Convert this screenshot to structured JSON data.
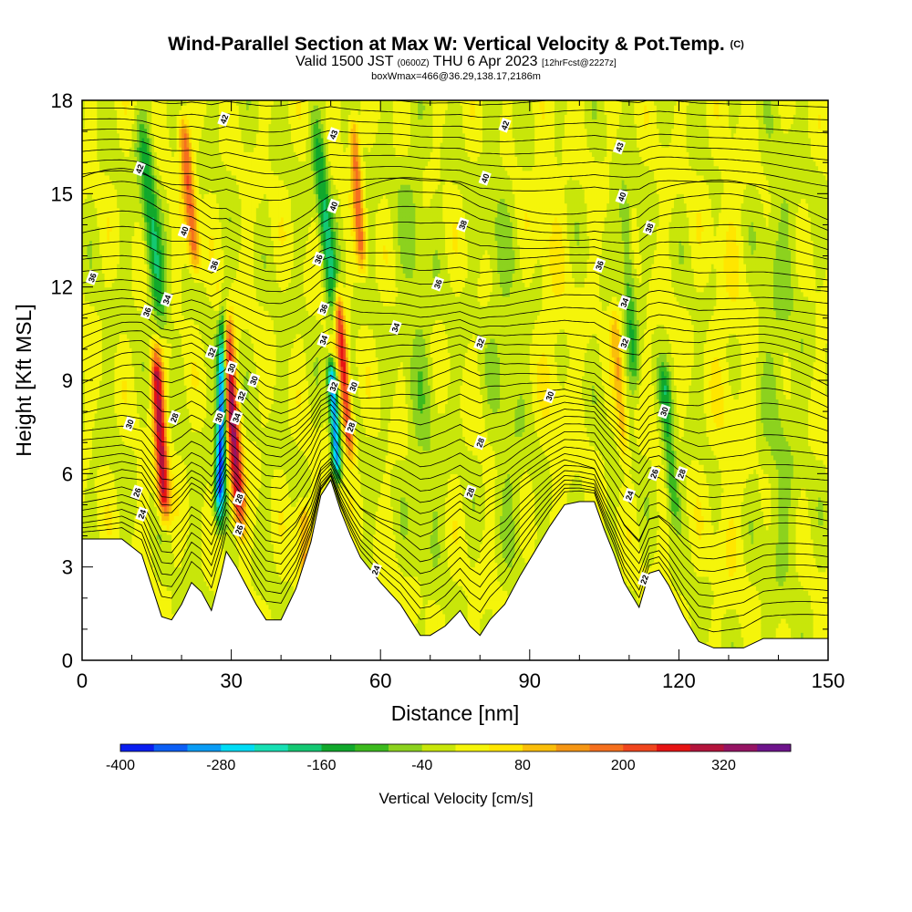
{
  "header": {
    "title_main": "Wind-Parallel Section at Max W: Vertical Velocity & Pot.Temp.",
    "title_mark": "(C)",
    "valid_prefix": "Valid 1500 JST",
    "valid_utc": "(0600Z)",
    "valid_date": "THU 6 Apr 2023",
    "valid_fcst": "[12hrFcst@2227z]",
    "box_info": "boxWmax=466@36.29,138.17,2186m"
  },
  "chart_data": {
    "type": "heatmap",
    "xlabel": "Distance [nm]",
    "ylabel": "Height [Kft MSL]",
    "xlim": [
      0,
      150
    ],
    "ylim": [
      0,
      18
    ],
    "x_ticks": [
      "0",
      "30",
      "60",
      "90",
      "120",
      "150"
    ],
    "y_ticks": [
      "0",
      "3",
      "6",
      "9",
      "12",
      "15",
      "18"
    ],
    "colorbar": {
      "title": "Vertical Velocity [cm/s]",
      "levels": [
        -400,
        -360,
        -320,
        -280,
        -240,
        -200,
        -160,
        -120,
        -80,
        -40,
        0,
        40,
        80,
        120,
        160,
        200,
        240,
        280,
        320,
        360,
        400
      ],
      "tick_labels": [
        "-400",
        "-280",
        "-160",
        "-40",
        "80",
        "200",
        "320"
      ],
      "colors": [
        "#0a1ef0",
        "#0c5ff5",
        "#0a9cf5",
        "#00dcf5",
        "#17e0b4",
        "#14c873",
        "#11a82c",
        "#3cba1e",
        "#8cd21e",
        "#c8e60a",
        "#f5f50a",
        "#ffe600",
        "#fabe0a",
        "#f59614",
        "#f5701e",
        "#f0461e",
        "#e61414",
        "#b4143c",
        "#961464",
        "#6e148c"
      ]
    },
    "terrain_kft": [
      [
        0,
        3.9
      ],
      [
        8,
        3.9
      ],
      [
        12,
        3.4
      ],
      [
        14,
        2.4
      ],
      [
        16,
        1.4
      ],
      [
        18,
        1.3
      ],
      [
        20,
        1.8
      ],
      [
        22,
        2.5
      ],
      [
        24,
        2.2
      ],
      [
        26,
        1.6
      ],
      [
        28,
        2.8
      ],
      [
        29,
        3.5
      ],
      [
        31,
        3.0
      ],
      [
        33,
        2.4
      ],
      [
        35,
        1.8
      ],
      [
        37,
        1.3
      ],
      [
        40,
        1.3
      ],
      [
        43,
        2.3
      ],
      [
        46,
        3.8
      ],
      [
        48,
        5.3
      ],
      [
        50,
        5.8
      ],
      [
        52,
        4.8
      ],
      [
        54,
        4.0
      ],
      [
        56,
        3.3
      ],
      [
        60,
        2.5
      ],
      [
        64,
        1.8
      ],
      [
        66,
        1.3
      ],
      [
        68,
        0.8
      ],
      [
        70,
        0.8
      ],
      [
        73,
        1.1
      ],
      [
        76,
        1.6
      ],
      [
        78,
        1.1
      ],
      [
        80,
        0.8
      ],
      [
        82,
        1.3
      ],
      [
        85,
        1.8
      ],
      [
        88,
        2.7
      ],
      [
        91,
        3.5
      ],
      [
        94,
        4.3
      ],
      [
        97,
        5.0
      ],
      [
        100,
        5.1
      ],
      [
        103,
        5.1
      ],
      [
        105,
        4.2
      ],
      [
        107,
        3.4
      ],
      [
        109,
        2.5
      ],
      [
        112,
        1.7
      ],
      [
        114,
        2.8
      ],
      [
        116,
        2.9
      ],
      [
        118,
        2.4
      ],
      [
        121,
        1.4
      ],
      [
        124,
        0.6
      ],
      [
        127,
        0.4
      ],
      [
        133,
        0.4
      ],
      [
        137,
        0.7
      ],
      [
        150,
        0.7
      ]
    ],
    "w_field": {
      "background_cm_s": 0,
      "plumes": [
        {
          "name": "",
          "x0": 16,
          "y0": 6.5,
          "slope": -0.35,
          "width": 1.2,
          "y_min": 4.0,
          "y_max": 10.5,
          "peak": 300
        },
        {
          "name": "",
          "x0": 27.8,
          "y0": 6,
          "slope": 0.12,
          "width": 1.0,
          "y_min": 3.8,
          "y_max": 12.5,
          "peak": -380
        },
        {
          "name": "",
          "x0": 31,
          "y0": 6,
          "slope": -0.45,
          "width": 1.3,
          "y_min": 3.5,
          "y_max": 12.5,
          "peak": 320
        },
        {
          "name": "",
          "x0": 14,
          "y0": 14,
          "slope": -0.6,
          "width": 1.6,
          "y_min": 10,
          "y_max": 18,
          "peak": -150
        },
        {
          "name": "",
          "x0": 21,
          "y0": 16,
          "slope": -0.55,
          "width": 1.2,
          "y_min": 12,
          "y_max": 18,
          "peak": 200
        },
        {
          "name": "",
          "x0": 51,
          "y0": 7,
          "slope": -0.35,
          "width": 0.9,
          "y_min": 5.5,
          "y_max": 10,
          "peak": -320
        },
        {
          "name": "",
          "x0": 53.5,
          "y0": 7.5,
          "slope": -0.5,
          "width": 1.0,
          "y_min": 6,
          "y_max": 12.5,
          "peak": 260
        },
        {
          "name": "",
          "x0": 49,
          "y0": 14,
          "slope": -0.6,
          "width": 1.4,
          "y_min": 10,
          "y_max": 18,
          "peak": -160
        },
        {
          "name": "",
          "x0": 55,
          "y0": 16,
          "slope": -0.4,
          "width": 1.0,
          "y_min": 12,
          "y_max": 18,
          "peak": 180
        },
        {
          "name": "",
          "x0": 118,
          "y0": 7,
          "slope": -0.5,
          "width": 1.2,
          "y_min": 4,
          "y_max": 10,
          "peak": -120
        },
        {
          "name": "",
          "x0": 110,
          "y0": 12,
          "slope": -0.35,
          "width": 1.2,
          "y_min": 8,
          "y_max": 16,
          "peak": -100
        },
        {
          "name": "",
          "x0": 45,
          "y0": 3,
          "slope": -0.3,
          "width": 1.5,
          "y_min": 1.3,
          "y_max": 5.5,
          "peak": 120
        },
        {
          "name": "",
          "x0": 108,
          "y0": 9,
          "slope": -0.4,
          "width": 1.0,
          "y_min": 6,
          "y_max": 12,
          "peak": 100
        },
        {
          "name": "",
          "x0": 68,
          "y0": 9,
          "slope": -0.3,
          "width": 3.0,
          "y_min": 2,
          "y_max": 18,
          "peak": -45
        },
        {
          "name": "",
          "x0": 85,
          "y0": 9,
          "slope": -0.3,
          "width": 3.0,
          "y_min": 2,
          "y_max": 18,
          "peak": -40
        },
        {
          "name": "",
          "x0": 95,
          "y0": 10,
          "slope": -0.3,
          "width": 3.0,
          "y_min": 4,
          "y_max": 18,
          "peak": 30
        },
        {
          "name": "",
          "x0": 130,
          "y0": 9,
          "slope": 0,
          "width": 4.0,
          "y_min": 0.4,
          "y_max": 18,
          "peak": 25
        },
        {
          "name": "",
          "x0": 140,
          "y0": 12,
          "slope": 0,
          "width": 4.0,
          "y_min": 0.4,
          "y_max": 18,
          "peak": -40
        }
      ]
    },
    "theta_labels": [
      {
        "text": "42",
        "x": 11.5,
        "y": 15.8
      },
      {
        "text": "42",
        "x": 28.5,
        "y": 17.4
      },
      {
        "text": "43",
        "x": 50.5,
        "y": 16.9
      },
      {
        "text": "42",
        "x": 85,
        "y": 17.2
      },
      {
        "text": "43",
        "x": 108,
        "y": 16.5
      },
      {
        "text": "40",
        "x": 81,
        "y": 15.5
      },
      {
        "text": "40",
        "x": 108.5,
        "y": 14.9
      },
      {
        "text": "40",
        "x": 50.5,
        "y": 14.6
      },
      {
        "text": "40",
        "x": 20.5,
        "y": 13.8
      },
      {
        "text": "38",
        "x": 76.5,
        "y": 14.0
      },
      {
        "text": "38",
        "x": 114,
        "y": 13.9
      },
      {
        "text": "36",
        "x": 26.5,
        "y": 12.7
      },
      {
        "text": "36",
        "x": 47.5,
        "y": 12.9
      },
      {
        "text": "36",
        "x": 2,
        "y": 12.3
      },
      {
        "text": "36",
        "x": 71.5,
        "y": 12.1
      },
      {
        "text": "36",
        "x": 104,
        "y": 12.7
      },
      {
        "text": "34",
        "x": 17,
        "y": 11.6
      },
      {
        "text": "36",
        "x": 13,
        "y": 11.2
      },
      {
        "text": "36",
        "x": 48.5,
        "y": 11.3
      },
      {
        "text": "34",
        "x": 63,
        "y": 10.7
      },
      {
        "text": "34",
        "x": 109,
        "y": 11.5
      },
      {
        "text": "34",
        "x": 48.5,
        "y": 10.3
      },
      {
        "text": "32",
        "x": 80,
        "y": 10.2
      },
      {
        "text": "32",
        "x": 109,
        "y": 10.2
      },
      {
        "text": "32",
        "x": 26,
        "y": 9.9
      },
      {
        "text": "30",
        "x": 30,
        "y": 9.4
      },
      {
        "text": "30",
        "x": 34.5,
        "y": 9.0
      },
      {
        "text": "32",
        "x": 50.5,
        "y": 8.8
      },
      {
        "text": "30",
        "x": 54.5,
        "y": 8.8
      },
      {
        "text": "32",
        "x": 32,
        "y": 8.5
      },
      {
        "text": "30",
        "x": 94,
        "y": 8.5
      },
      {
        "text": "30",
        "x": 117,
        "y": 8.0
      },
      {
        "text": "30",
        "x": 9.5,
        "y": 7.6
      },
      {
        "text": "28",
        "x": 18.5,
        "y": 7.8
      },
      {
        "text": "30",
        "x": 27.5,
        "y": 7.8
      },
      {
        "text": "34",
        "x": 31,
        "y": 7.8
      },
      {
        "text": "28",
        "x": 54,
        "y": 7.5
      },
      {
        "text": "28",
        "x": 80,
        "y": 7.0
      },
      {
        "text": "26",
        "x": 115,
        "y": 6.0
      },
      {
        "text": "28",
        "x": 120.5,
        "y": 6.0
      },
      {
        "text": "26",
        "x": 11,
        "y": 5.4
      },
      {
        "text": "28",
        "x": 78,
        "y": 5.4
      },
      {
        "text": "24",
        "x": 110,
        "y": 5.3
      },
      {
        "text": "28",
        "x": 31.5,
        "y": 5.2
      },
      {
        "text": "24",
        "x": 12,
        "y": 4.7
      },
      {
        "text": "26",
        "x": 31.5,
        "y": 4.2
      },
      {
        "text": "24",
        "x": 59,
        "y": 2.9
      },
      {
        "text": "22",
        "x": 113,
        "y": 2.6
      }
    ]
  }
}
